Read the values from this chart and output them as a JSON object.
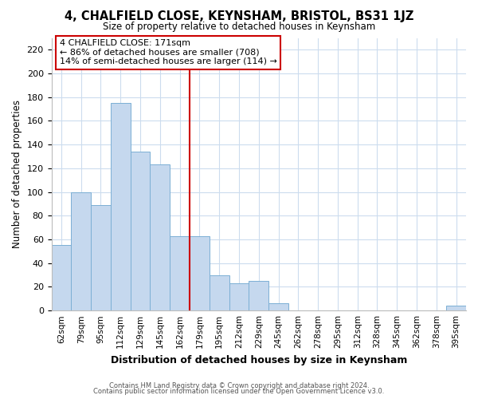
{
  "title": "4, CHALFIELD CLOSE, KEYNSHAM, BRISTOL, BS31 1JZ",
  "subtitle": "Size of property relative to detached houses in Keynsham",
  "xlabel": "Distribution of detached houses by size in Keynsham",
  "ylabel": "Number of detached properties",
  "bar_color": "#c5d8ee",
  "bar_edge_color": "#7bafd4",
  "categories": [
    "62sqm",
    "79sqm",
    "95sqm",
    "112sqm",
    "129sqm",
    "145sqm",
    "162sqm",
    "179sqm",
    "195sqm",
    "212sqm",
    "229sqm",
    "245sqm",
    "262sqm",
    "278sqm",
    "295sqm",
    "312sqm",
    "328sqm",
    "345sqm",
    "362sqm",
    "378sqm",
    "395sqm"
  ],
  "values": [
    55,
    100,
    89,
    175,
    134,
    123,
    63,
    63,
    30,
    23,
    25,
    6,
    0,
    0,
    0,
    0,
    0,
    0,
    0,
    0,
    4
  ],
  "vline_x_index": 7,
  "vline_color": "#cc0000",
  "annotation_title": "4 CHALFIELD CLOSE: 171sqm",
  "annotation_line1": "← 86% of detached houses are smaller (708)",
  "annotation_line2": "14% of semi-detached houses are larger (114) →",
  "annotation_box_edge": "#cc0000",
  "ylim": [
    0,
    230
  ],
  "yticks": [
    0,
    20,
    40,
    60,
    80,
    100,
    120,
    140,
    160,
    180,
    200,
    220
  ],
  "footer1": "Contains HM Land Registry data © Crown copyright and database right 2024.",
  "footer2": "Contains public sector information licensed under the Open Government Licence v3.0.",
  "background_color": "#ffffff",
  "grid_color": "#ccdcee"
}
